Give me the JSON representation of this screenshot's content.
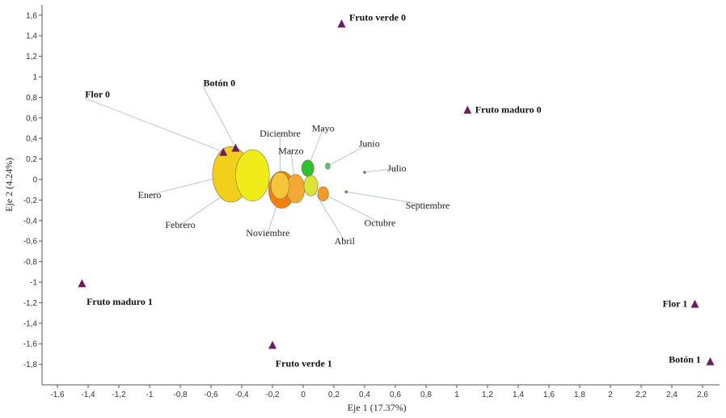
{
  "chart_data": {
    "type": "scatter",
    "xlabel": "Eje 1 (17.37%)",
    "ylabel": "Eje 2 (4.24%)",
    "xlim": [
      -1.7,
      2.75
    ],
    "ylim": [
      -1.9,
      1.7
    ],
    "xticks": [
      "-1,6",
      "-1,4",
      "-1,2",
      "-1",
      "-0,8",
      "-0,6",
      "-0,4",
      "-0,2",
      "0",
      "0,2",
      "0,4",
      "0,6",
      "0,8",
      "1",
      "1,2",
      "1,4",
      "1,6",
      "1,8",
      "2",
      "2,2",
      "2,4",
      "2,6"
    ],
    "yticks": [
      "1,6",
      "1,4",
      "1,2",
      "1",
      "0,8",
      "0,6",
      "0,4",
      "0,2",
      "0",
      "-0,2",
      "-0,4",
      "-0,6",
      "-0,8",
      "-1",
      "-1,2",
      "-1,4",
      "-1,6",
      "-1,8"
    ],
    "grid": false,
    "months": [
      {
        "name": "Enero",
        "x": -0.47,
        "y": 0.05,
        "rx": 0.12,
        "ry": 0.27,
        "color": "#f2cf1c",
        "lx": -1.0,
        "ly": -0.15
      },
      {
        "name": "Febrero",
        "x": -0.33,
        "y": 0.04,
        "rx": 0.11,
        "ry": 0.25,
        "color": "#f0ec1a",
        "lx": -0.8,
        "ly": -0.44
      },
      {
        "name": "Diciembre",
        "x": -0.15,
        "y": -0.06,
        "rx": 0.06,
        "ry": 0.13,
        "color": "#f5c43a",
        "lx": -0.15,
        "ly": 0.45
      },
      {
        "name": "Noviembre",
        "x": -0.14,
        "y": -0.1,
        "rx": 0.085,
        "ry": 0.18,
        "color": "#f57e0e",
        "lx": -0.23,
        "ly": -0.52
      },
      {
        "name": "Marzo",
        "x": -0.05,
        "y": -0.09,
        "rx": 0.06,
        "ry": 0.14,
        "color": "#f3a935",
        "lx": -0.08,
        "ly": 0.28
      },
      {
        "name": "Abril",
        "x": 0.05,
        "y": -0.06,
        "rx": 0.045,
        "ry": 0.1,
        "color": "#dce33b",
        "lx": 0.27,
        "ly": -0.6
      },
      {
        "name": "Mayo",
        "x": 0.03,
        "y": 0.11,
        "rx": 0.04,
        "ry": 0.08,
        "color": "#2fbf2f",
        "lx": 0.13,
        "ly": 0.5
      },
      {
        "name": "Octubre",
        "x": 0.13,
        "y": -0.14,
        "rx": 0.035,
        "ry": 0.07,
        "color": "#f59a2a",
        "lx": 0.5,
        "ly": -0.42
      },
      {
        "name": "Junio",
        "x": 0.16,
        "y": 0.13,
        "rx": 0.015,
        "ry": 0.03,
        "color": "#49c776",
        "lx": 0.43,
        "ly": 0.35
      },
      {
        "name": "Julio",
        "x": 0.4,
        "y": 0.07,
        "rx": 0.005,
        "ry": 0.008,
        "color": "#6e8f6e",
        "lx": 0.61,
        "ly": 0.11
      },
      {
        "name": "Septiembre",
        "x": 0.28,
        "y": -0.12,
        "rx": 0.005,
        "ry": 0.008,
        "color": "#6e8f6e",
        "lx": 0.81,
        "ly": -0.25
      }
    ],
    "categories": [
      {
        "name": "Flor 0",
        "x": -0.52,
        "y": 0.27,
        "lx": -1.42,
        "ly": 0.83
      },
      {
        "name": "Botón 0",
        "x": -0.44,
        "y": 0.31,
        "lx": -0.65,
        "ly": 0.94
      },
      {
        "name": "Fruto verde 0",
        "x": 0.25,
        "y": 1.52,
        "lx": 0.3,
        "ly": 1.58
      },
      {
        "name": "Fruto maduro 0",
        "x": 1.07,
        "y": 0.68,
        "lx": 1.12,
        "ly": 0.68
      },
      {
        "name": "Fruto maduro 1",
        "x": -1.44,
        "y": -1.01,
        "lx": -1.41,
        "ly": -1.19
      },
      {
        "name": "Fruto verde 1",
        "x": -0.2,
        "y": -1.61,
        "lx": -0.18,
        "ly": -1.79
      },
      {
        "name": "Flor 1",
        "x": 2.55,
        "y": -1.21,
        "lx": 2.34,
        "ly": -1.21
      },
      {
        "name": "Botón 1",
        "x": 2.65,
        "y": -1.77,
        "lx": 2.38,
        "ly": -1.75
      }
    ],
    "marker_color": "#6b1f5e"
  }
}
